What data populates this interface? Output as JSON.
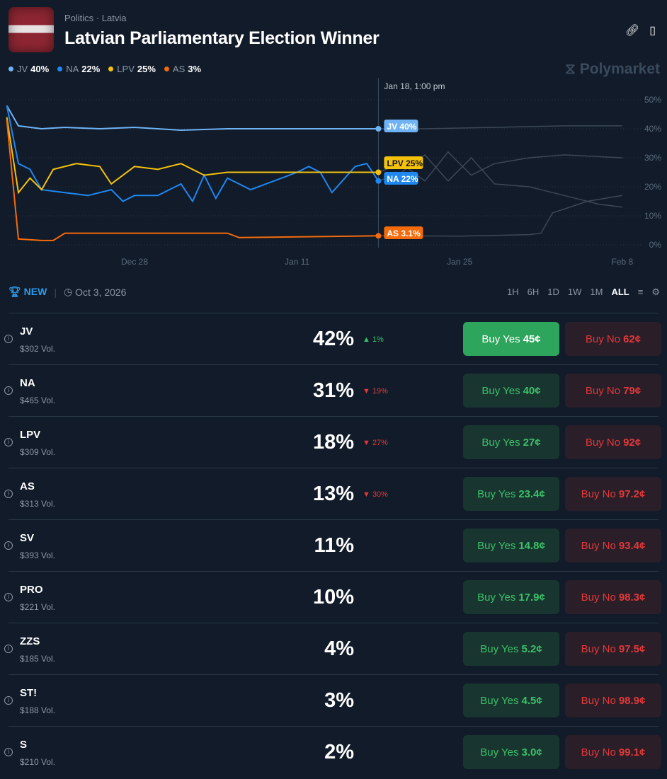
{
  "header": {
    "category": "Politics",
    "subcategory": "Latvia",
    "title": "Latvian Parliamentary Election Winner",
    "brand": "Polymarket"
  },
  "legend": [
    {
      "name": "JV",
      "value": "40%",
      "color": "#6fb3f5"
    },
    {
      "name": "NA",
      "value": "22%",
      "color": "#1f87f0"
    },
    {
      "name": "LPV",
      "value": "25%",
      "color": "#f5c20b"
    },
    {
      "name": "AS",
      "value": "3%",
      "color": "#f56b0b"
    }
  ],
  "chart_data": {
    "type": "line",
    "hover_label": "Jan 18, 1:00 pm",
    "x_ticks": [
      "Dec 28",
      "Jan 11",
      "Jan 25",
      "Feb 8"
    ],
    "y_ticks": [
      "50%",
      "40%",
      "30%",
      "20%",
      "10%",
      "0%"
    ],
    "ylim": [
      0,
      50
    ],
    "grid": "horizontal dotted",
    "series": [
      {
        "name": "JV",
        "label": "JV 40%",
        "color": "#6fb3f5",
        "x": [
          "Dec 17",
          "Dec 18",
          "Dec 20",
          "Dec 22",
          "Dec 25",
          "Dec 28",
          "Jan 1",
          "Jan 5",
          "Jan 10",
          "Jan 15",
          "Jan 18",
          "Jan 22",
          "Jan 28",
          "Feb 3",
          "Feb 8"
        ],
        "y": [
          48,
          41,
          40,
          40.5,
          40,
          40.5,
          39.5,
          40,
          40,
          40,
          40,
          40,
          40.5,
          41,
          41
        ]
      },
      {
        "name": "NA",
        "label": "NA 22%",
        "color": "#1f87f0",
        "x": [
          "Dec 17",
          "Dec 18",
          "Dec 19",
          "Dec 20",
          "Dec 22",
          "Dec 24",
          "Dec 26",
          "Dec 27",
          "Dec 28",
          "Dec 30",
          "Jan 1",
          "Jan 2",
          "Jan 3",
          "Jan 4",
          "Jan 5",
          "Jan 7",
          "Jan 9",
          "Jan 11",
          "Jan 12",
          "Jan 13",
          "Jan 14",
          "Jan 16",
          "Jan 17",
          "Jan 18",
          "Jan 20",
          "Jan 22",
          "Jan 24",
          "Jan 26",
          "Jan 28",
          "Jan 31",
          "Feb 3",
          "Feb 6",
          "Feb 8"
        ],
        "y": [
          48,
          28,
          26,
          19,
          18,
          17,
          19,
          15,
          17,
          17,
          21,
          15,
          24,
          16,
          23,
          19,
          22,
          25,
          27,
          25,
          18,
          27,
          28,
          22,
          25,
          31,
          22,
          30,
          21,
          20,
          17,
          14,
          13
        ]
      },
      {
        "name": "LPV",
        "label": "LPV 25%",
        "color": "#f5c20b",
        "x": [
          "Dec 17",
          "Dec 18",
          "Dec 19",
          "Dec 20",
          "Dec 21",
          "Dec 23",
          "Dec 25",
          "Dec 26",
          "Dec 28",
          "Dec 30",
          "Jan 1",
          "Jan 3",
          "Jan 5",
          "Jan 10",
          "Jan 18",
          "Jan 20",
          "Jan 22",
          "Jan 24",
          "Jan 26",
          "Jan 28",
          "Jan 31",
          "Feb 3",
          "Feb 8"
        ],
        "y": [
          44,
          18,
          23,
          19,
          26,
          28,
          27,
          21,
          27,
          26,
          28,
          24,
          25,
          25,
          25,
          28,
          22,
          32,
          24,
          28,
          30,
          31,
          30
        ]
      },
      {
        "name": "AS",
        "label": "AS 3.1%",
        "color": "#f56b0b",
        "x": [
          "Dec 17",
          "Dec 18",
          "Dec 20",
          "Dec 21",
          "Dec 22",
          "Dec 28",
          "Jan 5",
          "Jan 6",
          "Jan 18",
          "Jan 25",
          "Jan 31",
          "Feb 1",
          "Feb 2",
          "Feb 5",
          "Feb 8"
        ],
        "y": [
          43,
          2,
          1.5,
          1.5,
          4,
          4,
          4,
          2.5,
          3.1,
          3,
          3.5,
          4,
          11,
          15,
          17
        ]
      }
    ]
  },
  "toolbar": {
    "badge": "NEW",
    "date": "Oct 3, 2026",
    "ranges": [
      "1H",
      "6H",
      "1D",
      "1W",
      "1M",
      "ALL"
    ],
    "active_range": "ALL"
  },
  "outcomes": [
    {
      "name": "JV",
      "vol": "$302 Vol.",
      "pct": "42%",
      "change": "1%",
      "dir": "up",
      "yes_label": "Buy Yes",
      "yes": "45¢",
      "no_label": "Buy No",
      "no": "62¢"
    },
    {
      "name": "NA",
      "vol": "$465 Vol.",
      "pct": "31%",
      "change": "19%",
      "dir": "down",
      "yes_label": "Buy Yes",
      "yes": "40¢",
      "no_label": "Buy No",
      "no": "79¢"
    },
    {
      "name": "LPV",
      "vol": "$309 Vol.",
      "pct": "18%",
      "change": "27%",
      "dir": "down",
      "yes_label": "Buy Yes",
      "yes": "27¢",
      "no_label": "Buy No",
      "no": "92¢"
    },
    {
      "name": "AS",
      "vol": "$313 Vol.",
      "pct": "13%",
      "change": "30%",
      "dir": "down",
      "yes_label": "Buy Yes",
      "yes": "23.4¢",
      "no_label": "Buy No",
      "no": "97.2¢"
    },
    {
      "name": "SV",
      "vol": "$393 Vol.",
      "pct": "11%",
      "change": "",
      "dir": "",
      "yes_label": "Buy Yes",
      "yes": "14.8¢",
      "no_label": "Buy No",
      "no": "93.4¢"
    },
    {
      "name": "PRO",
      "vol": "$221 Vol.",
      "pct": "10%",
      "change": "",
      "dir": "",
      "yes_label": "Buy Yes",
      "yes": "17.9¢",
      "no_label": "Buy No",
      "no": "98.3¢"
    },
    {
      "name": "ZZS",
      "vol": "$185 Vol.",
      "pct": "4%",
      "change": "",
      "dir": "",
      "yes_label": "Buy Yes",
      "yes": "5.2¢",
      "no_label": "Buy No",
      "no": "97.5¢"
    },
    {
      "name": "ST!",
      "vol": "$188 Vol.",
      "pct": "3%",
      "change": "",
      "dir": "",
      "yes_label": "Buy Yes",
      "yes": "4.5¢",
      "no_label": "Buy No",
      "no": "98.9¢"
    },
    {
      "name": "S",
      "vol": "$210 Vol.",
      "pct": "2%",
      "change": "",
      "dir": "",
      "yes_label": "Buy Yes",
      "yes": "3.0¢",
      "no_label": "Buy No",
      "no": "99.1¢"
    }
  ]
}
